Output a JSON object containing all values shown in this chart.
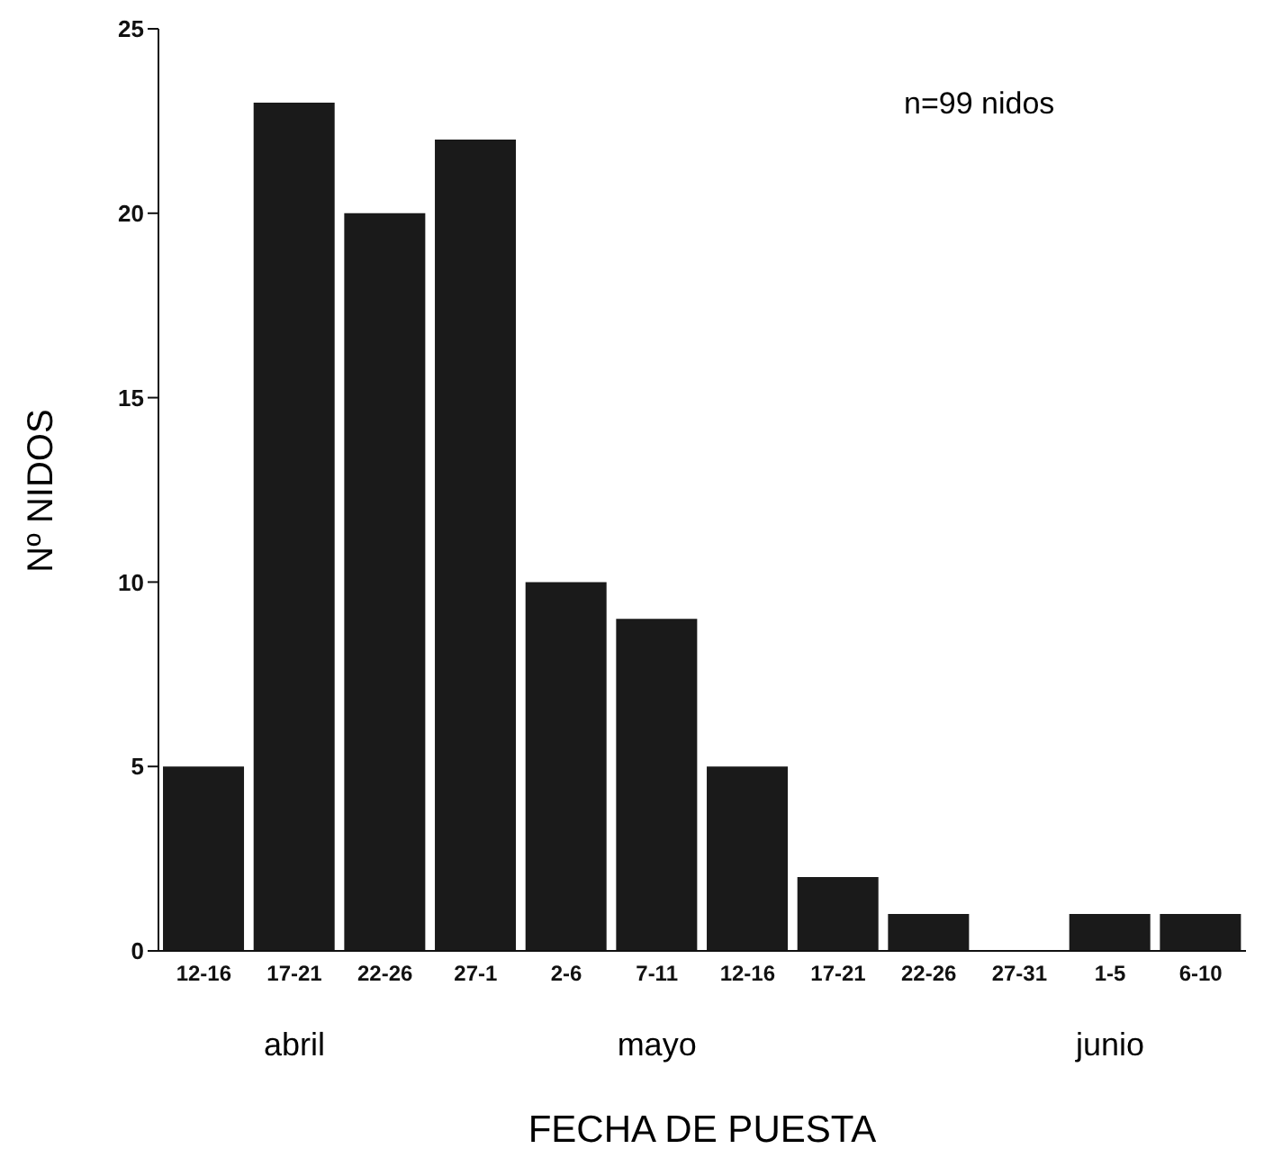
{
  "chart_data": {
    "type": "bar",
    "xlabel": "FECHA DE PUESTA",
    "ylabel": "Nº NIDOS",
    "categories": [
      "12-16",
      "17-21",
      "22-26",
      "27-1",
      "2-6",
      "7-11",
      "12-16",
      "17-21",
      "22-26",
      "27-31",
      "1-5",
      "6-10"
    ],
    "values": [
      5,
      23,
      20,
      22,
      10,
      9,
      5,
      2,
      1,
      0,
      1,
      1
    ],
    "color": "#1a1a1a",
    "ylim": [
      0,
      25
    ],
    "yticks": [
      0,
      5,
      10,
      15,
      20,
      25
    ],
    "grid": false,
    "annotations": [
      "n=99 nidos",
      "abril",
      "mayo",
      "junio"
    ]
  }
}
